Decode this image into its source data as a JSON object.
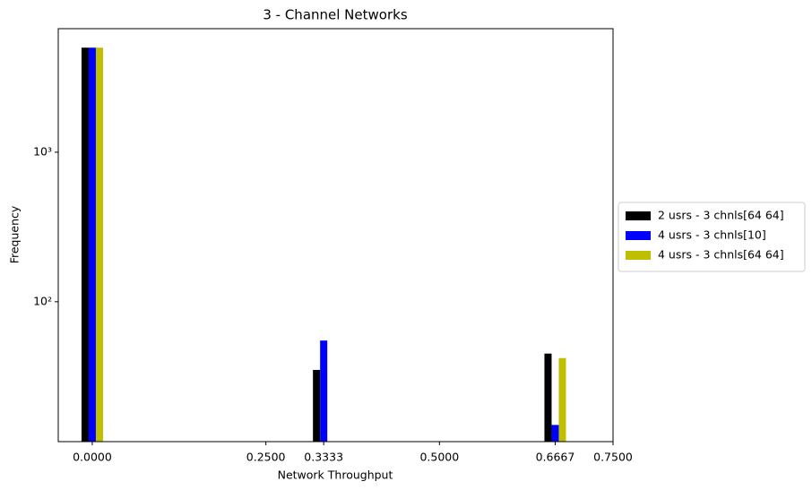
{
  "chart_data": {
    "type": "bar",
    "title": "3 - Channel Networks",
    "x_label": "Network Throughput",
    "y_label": "Frequency",
    "x": [
      0,
      0.3333,
      0.6667
    ],
    "series": [
      {
        "name": "2 usrs - 3 chnls[64 64]",
        "color": "#000000",
        "values": [
          5000,
          35,
          45
        ]
      },
      {
        "name": "4 usrs - 3 chnls[10]",
        "color": "#0000ff",
        "values": [
          5000,
          55,
          15
        ]
      },
      {
        "name": "4 usrs - 3 chnls[64 64]",
        "color": "#bfbf00",
        "values": [
          5000,
          null,
          42
        ]
      }
    ],
    "xlim": [
      -0.049,
      0.75
    ],
    "xticks": [
      {
        "value": 0,
        "label": "0.0000"
      },
      {
        "value": 0.25,
        "label": "0.2500"
      },
      {
        "value": 0.3333,
        "label": "0.3333"
      },
      {
        "value": 0.5,
        "label": "0.5000"
      },
      {
        "value": 0.6667,
        "label": "0.6667"
      },
      {
        "value": 0.75,
        "label": "0.7500"
      }
    ],
    "ylim": [
      11.6,
      6700
    ],
    "log_y": true,
    "yticks": [
      {
        "value": 100,
        "label": "10²"
      },
      {
        "value": 1000,
        "label": "10³"
      }
    ],
    "legend": "outside-right"
  }
}
